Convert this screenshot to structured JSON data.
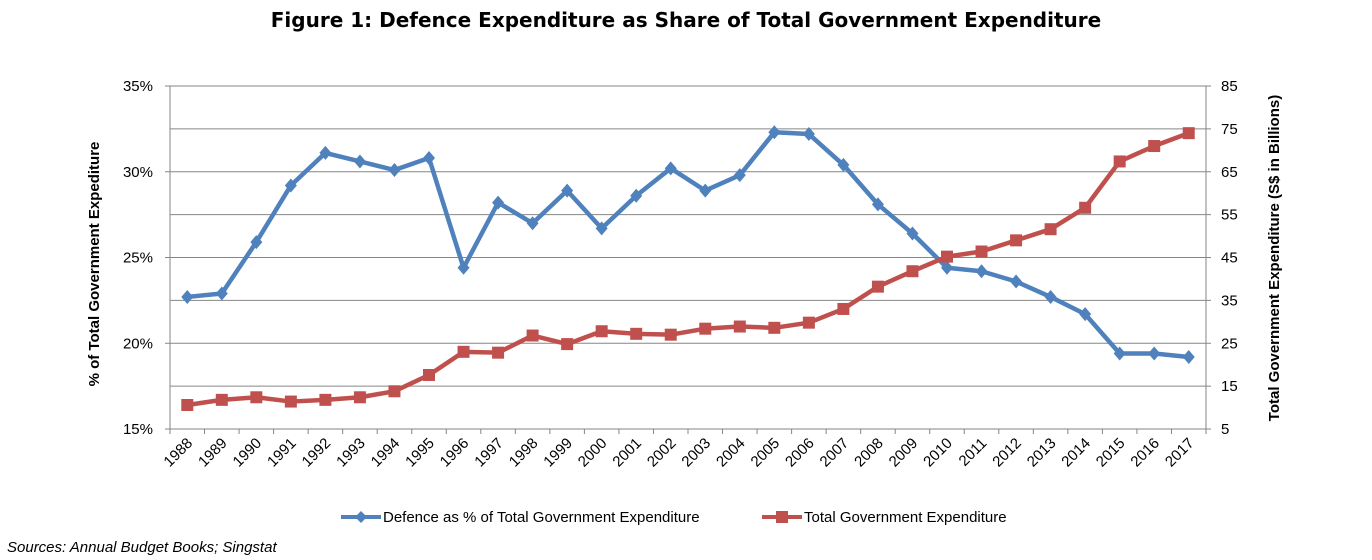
{
  "chart_data": {
    "type": "line",
    "title": "Figure 1: Defence Expenditure as Share of Total Government Expenditure",
    "ylabel_left": "% of Total Government Expediture",
    "ylabel_right": "Total Government Expenditure (S$ in Billions)",
    "left_ticks": [
      "15%",
      "20%",
      "25%",
      "30%",
      "35%"
    ],
    "right_ticks": [
      "5",
      "15",
      "25",
      "35",
      "45",
      "55",
      "65",
      "75",
      "85"
    ],
    "ylim_left": [
      15,
      35
    ],
    "ylim_right": [
      5,
      85
    ],
    "grid": true,
    "legend_position": "bottom",
    "categories": [
      "1988",
      "1989",
      "1990",
      "1991",
      "1992",
      "1993",
      "1994",
      "1995",
      "1996",
      "1997",
      "1998",
      "1999",
      "2000",
      "2001",
      "2002",
      "2003",
      "2004",
      "2005",
      "2006",
      "2007",
      "2008",
      "2009",
      "2010",
      "2011",
      "2012",
      "2013",
      "2014",
      "2015",
      "2016",
      "2017"
    ],
    "series": [
      {
        "name": "Defence as % of Total Government Expenditure",
        "axis": "left",
        "color": "#4F81BD",
        "marker": "diamond",
        "values": [
          22.7,
          22.9,
          25.9,
          29.2,
          31.1,
          30.6,
          30.1,
          30.8,
          24.4,
          28.2,
          27.0,
          28.9,
          26.7,
          28.6,
          30.2,
          28.9,
          29.8,
          32.3,
          32.2,
          30.4,
          28.1,
          26.4,
          24.4,
          24.2,
          23.6,
          22.7,
          21.7,
          19.4,
          19.4,
          19.2
        ]
      },
      {
        "name": "Total Government Expenditure",
        "axis": "right",
        "color": "#C0504D",
        "marker": "square",
        "values": [
          10.6,
          11.8,
          12.4,
          11.4,
          11.8,
          12.4,
          13.8,
          17.6,
          23.0,
          22.8,
          26.8,
          24.8,
          27.8,
          27.2,
          27.0,
          28.4,
          28.9,
          28.6,
          29.8,
          33.0,
          38.2,
          41.8,
          45.2,
          46.4,
          49.0,
          51.6,
          56.6,
          67.4,
          71.0,
          74.0
        ]
      }
    ],
    "source_note": "Sources: Annual Budget Books; Singstat"
  }
}
